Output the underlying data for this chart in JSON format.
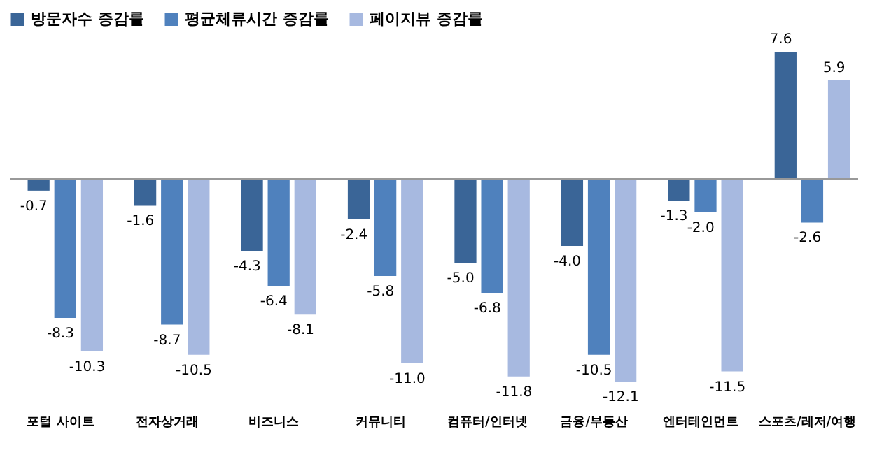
{
  "chart_data": {
    "type": "bar",
    "categories": [
      "포털 사이트",
      "전자상거래",
      "비즈니스",
      "커뮤니티",
      "컴퓨터/인터넷",
      "금융/부동산",
      "엔터테인먼트",
      "스포츠/레저/여행"
    ],
    "series": [
      {
        "name": "방문자수 증감률",
        "color": "#3a6597",
        "values": [
          -0.7,
          -1.6,
          -4.3,
          -2.4,
          -5.0,
          -4.0,
          -1.3,
          7.6
        ],
        "value_labels": [
          "-0.7",
          "-1.6",
          "-4.3",
          "-2.4",
          "-5.0",
          "-4.0",
          "-1.3",
          "7.6"
        ]
      },
      {
        "name": "평균체류시간 증감률",
        "color": "#4f81bd",
        "values": [
          -8.3,
          -8.7,
          -6.4,
          -5.8,
          -6.8,
          -10.5,
          -2.0,
          -2.6
        ],
        "value_labels": [
          "-8.3",
          "-8.7",
          "-6.4",
          "-5.8",
          "-6.8",
          "-10.5",
          "-2.0",
          "-2.6"
        ]
      },
      {
        "name": "페이지뷰 증감률",
        "color": "#a7b9e0",
        "values": [
          -10.3,
          -10.5,
          -8.1,
          -11.0,
          -11.8,
          -12.1,
          -11.5,
          5.9
        ],
        "value_labels": [
          "-10.3",
          "-10.5",
          "-8.1",
          "-11.0",
          "-11.8",
          "-12.1",
          "-11.5",
          "5.9"
        ]
      }
    ],
    "legend": "top"
  }
}
